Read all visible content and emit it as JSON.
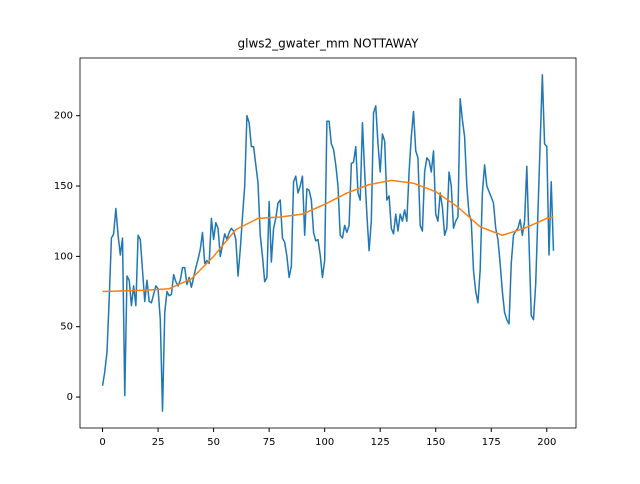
{
  "chart_data": {
    "type": "line",
    "title": "glws2_gwater_mm NOTTAWAY",
    "xlim": [
      -10.15,
      213.15
    ],
    "ylim": [
      -22,
      241
    ],
    "xticks": [
      0,
      25,
      50,
      75,
      100,
      125,
      150,
      175,
      200
    ],
    "yticks": [
      0,
      50,
      100,
      150,
      200
    ],
    "series": [
      {
        "color": "#1f77b4",
        "x": [
          0,
          1,
          2,
          3,
          4,
          5,
          6,
          7,
          8,
          9,
          10,
          11,
          12,
          13,
          14,
          15,
          16,
          17,
          18,
          19,
          20,
          21,
          22,
          23,
          24,
          25,
          26,
          27,
          28,
          29,
          30,
          31,
          32,
          33,
          34,
          35,
          36,
          37,
          38,
          39,
          40,
          41,
          42,
          43,
          44,
          45,
          46,
          47,
          48,
          49,
          50,
          51,
          52,
          53,
          54,
          55,
          56,
          57,
          58,
          59,
          60,
          61,
          62,
          63,
          64,
          65,
          66,
          67,
          68,
          69,
          70,
          71,
          72,
          73,
          74,
          75,
          76,
          77,
          78,
          79,
          80,
          81,
          82,
          83,
          84,
          85,
          86,
          87,
          88,
          89,
          90,
          91,
          92,
          93,
          94,
          95,
          96,
          97,
          98,
          99,
          100,
          101,
          102,
          103,
          104,
          105,
          106,
          107,
          108,
          109,
          110,
          111,
          112,
          113,
          114,
          115,
          116,
          117,
          118,
          119,
          120,
          121,
          122,
          123,
          124,
          125,
          126,
          127,
          128,
          129,
          130,
          131,
          132,
          133,
          134,
          135,
          136,
          137,
          138,
          139,
          140,
          141,
          142,
          143,
          144,
          145,
          146,
          147,
          148,
          149,
          150,
          151,
          152,
          153,
          154,
          155,
          156,
          157,
          158,
          159,
          160,
          161,
          162,
          163,
          164,
          165,
          166,
          167,
          168,
          169,
          170,
          171,
          172,
          173,
          174,
          175,
          176,
          177,
          178,
          179,
          180,
          181,
          182,
          183,
          184,
          185,
          186,
          187,
          188,
          189,
          190,
          191,
          192,
          193,
          194,
          195,
          196,
          197,
          198,
          199,
          200,
          201,
          202,
          203
        ],
        "values": [
          8,
          18,
          32,
          70,
          113,
          116,
          134,
          115,
          101,
          113,
          1,
          86,
          83,
          65,
          79,
          65,
          115,
          112,
          90,
          68,
          83,
          68,
          67,
          73,
          79,
          77,
          55,
          -10,
          60,
          75,
          72,
          73,
          87,
          82,
          79,
          83,
          92,
          92,
          80,
          85,
          78,
          85,
          92,
          98,
          105,
          117,
          95,
          97,
          95,
          127,
          112,
          124,
          120,
          100,
          108,
          116,
          112,
          117,
          120,
          118,
          112,
          86,
          105,
          128,
          150,
          200,
          195,
          178,
          178,
          165,
          152,
          115,
          100,
          82,
          85,
          139,
          96,
          120,
          127,
          138,
          140,
          113,
          110,
          100,
          85,
          93,
          153,
          157,
          145,
          150,
          157,
          115,
          148,
          147,
          140,
          117,
          111,
          112,
          101,
          85,
          97,
          196,
          196,
          180,
          176,
          165,
          150,
          115,
          113,
          122,
          117,
          122,
          166,
          167,
          178,
          145,
          140,
          195,
          160,
          130,
          104,
          125,
          202,
          207,
          180,
          160,
          187,
          182,
          140,
          143,
          120,
          116,
          130,
          118,
          130,
          125,
          133,
          125,
          160,
          185,
          203,
          175,
          170,
          122,
          118,
          160,
          170,
          168,
          160,
          175,
          130,
          125,
          145,
          135,
          115,
          120,
          160,
          150,
          120,
          125,
          128,
          212,
          197,
          185,
          150,
          130,
          125,
          90,
          75,
          67,
          90,
          145,
          165,
          150,
          146,
          142,
          138,
          120,
          112,
          95,
          75,
          60,
          55,
          52,
          95,
          115,
          118,
          120,
          126,
          115,
          125,
          164,
          110,
          58,
          55,
          80,
          130,
          180,
          229,
          180,
          178,
          101,
          153,
          104
        ]
      },
      {
        "color": "#ff7f0e",
        "x": [
          0,
          10,
          20,
          30,
          40,
          50,
          60,
          70,
          80,
          90,
          100,
          110,
          120,
          130,
          140,
          150,
          160,
          170,
          180,
          190,
          200,
          203
        ],
        "values": [
          75,
          75.5,
          76,
          77,
          84,
          100,
          119,
          127,
          128,
          130,
          137,
          145,
          151,
          154,
          152,
          146,
          135,
          121,
          115,
          120,
          127,
          128
        ]
      }
    ]
  }
}
